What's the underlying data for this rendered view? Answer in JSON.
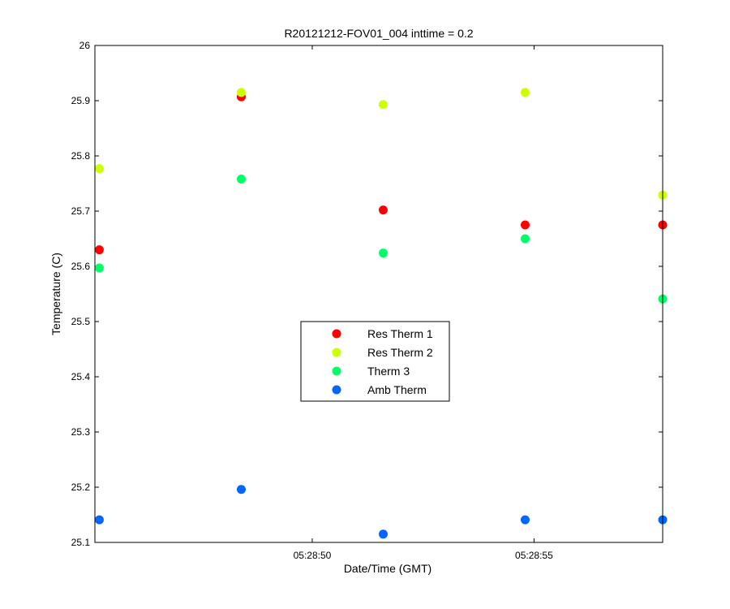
{
  "chart_data": {
    "type": "scatter",
    "title": "R20121212-FOV01_004 inttime = 0.2",
    "xlabel": "Date/Time (GMT)",
    "ylabel": "Temperature (C)",
    "x_axis": {
      "type": "time",
      "range": [
        "05:28:45.1",
        "05:28:57.9"
      ],
      "tick_values": [
        "05:28:50",
        "05:28:55"
      ],
      "tick_labels": [
        "05:28:50",
        "05:28:55"
      ]
    },
    "ylim": [
      25.1,
      26.0
    ],
    "y_ticks": [
      25.1,
      25.2,
      25.3,
      25.4,
      25.5,
      25.6,
      25.7,
      25.8,
      25.9,
      26.0
    ],
    "y_tick_labels": [
      "25.1",
      "25.2",
      "25.3",
      "25.4",
      "25.5",
      "25.6",
      "25.7",
      "25.8",
      "25.9",
      "26"
    ],
    "x": [
      "05:28:45.2",
      "05:28:48.4",
      "05:28:51.6",
      "05:28:54.8",
      "05:28:57.9"
    ],
    "series": [
      {
        "name": "Res Therm 1",
        "color": "#ff0000",
        "values": [
          25.63,
          25.907,
          25.702,
          25.675,
          25.675
        ]
      },
      {
        "name": "Res Therm 2",
        "color": "#ccff00",
        "values": [
          25.777,
          25.915,
          25.893,
          25.915,
          25.729
        ]
      },
      {
        "name": "Therm 3",
        "color": "#00ff66",
        "values": [
          25.597,
          25.758,
          25.624,
          25.65,
          25.541
        ]
      },
      {
        "name": "Amb Therm",
        "color": "#0066ff",
        "values": [
          25.141,
          25.196,
          25.115,
          25.141,
          25.141
        ]
      }
    ],
    "grid": false,
    "legend_position": "center"
  }
}
